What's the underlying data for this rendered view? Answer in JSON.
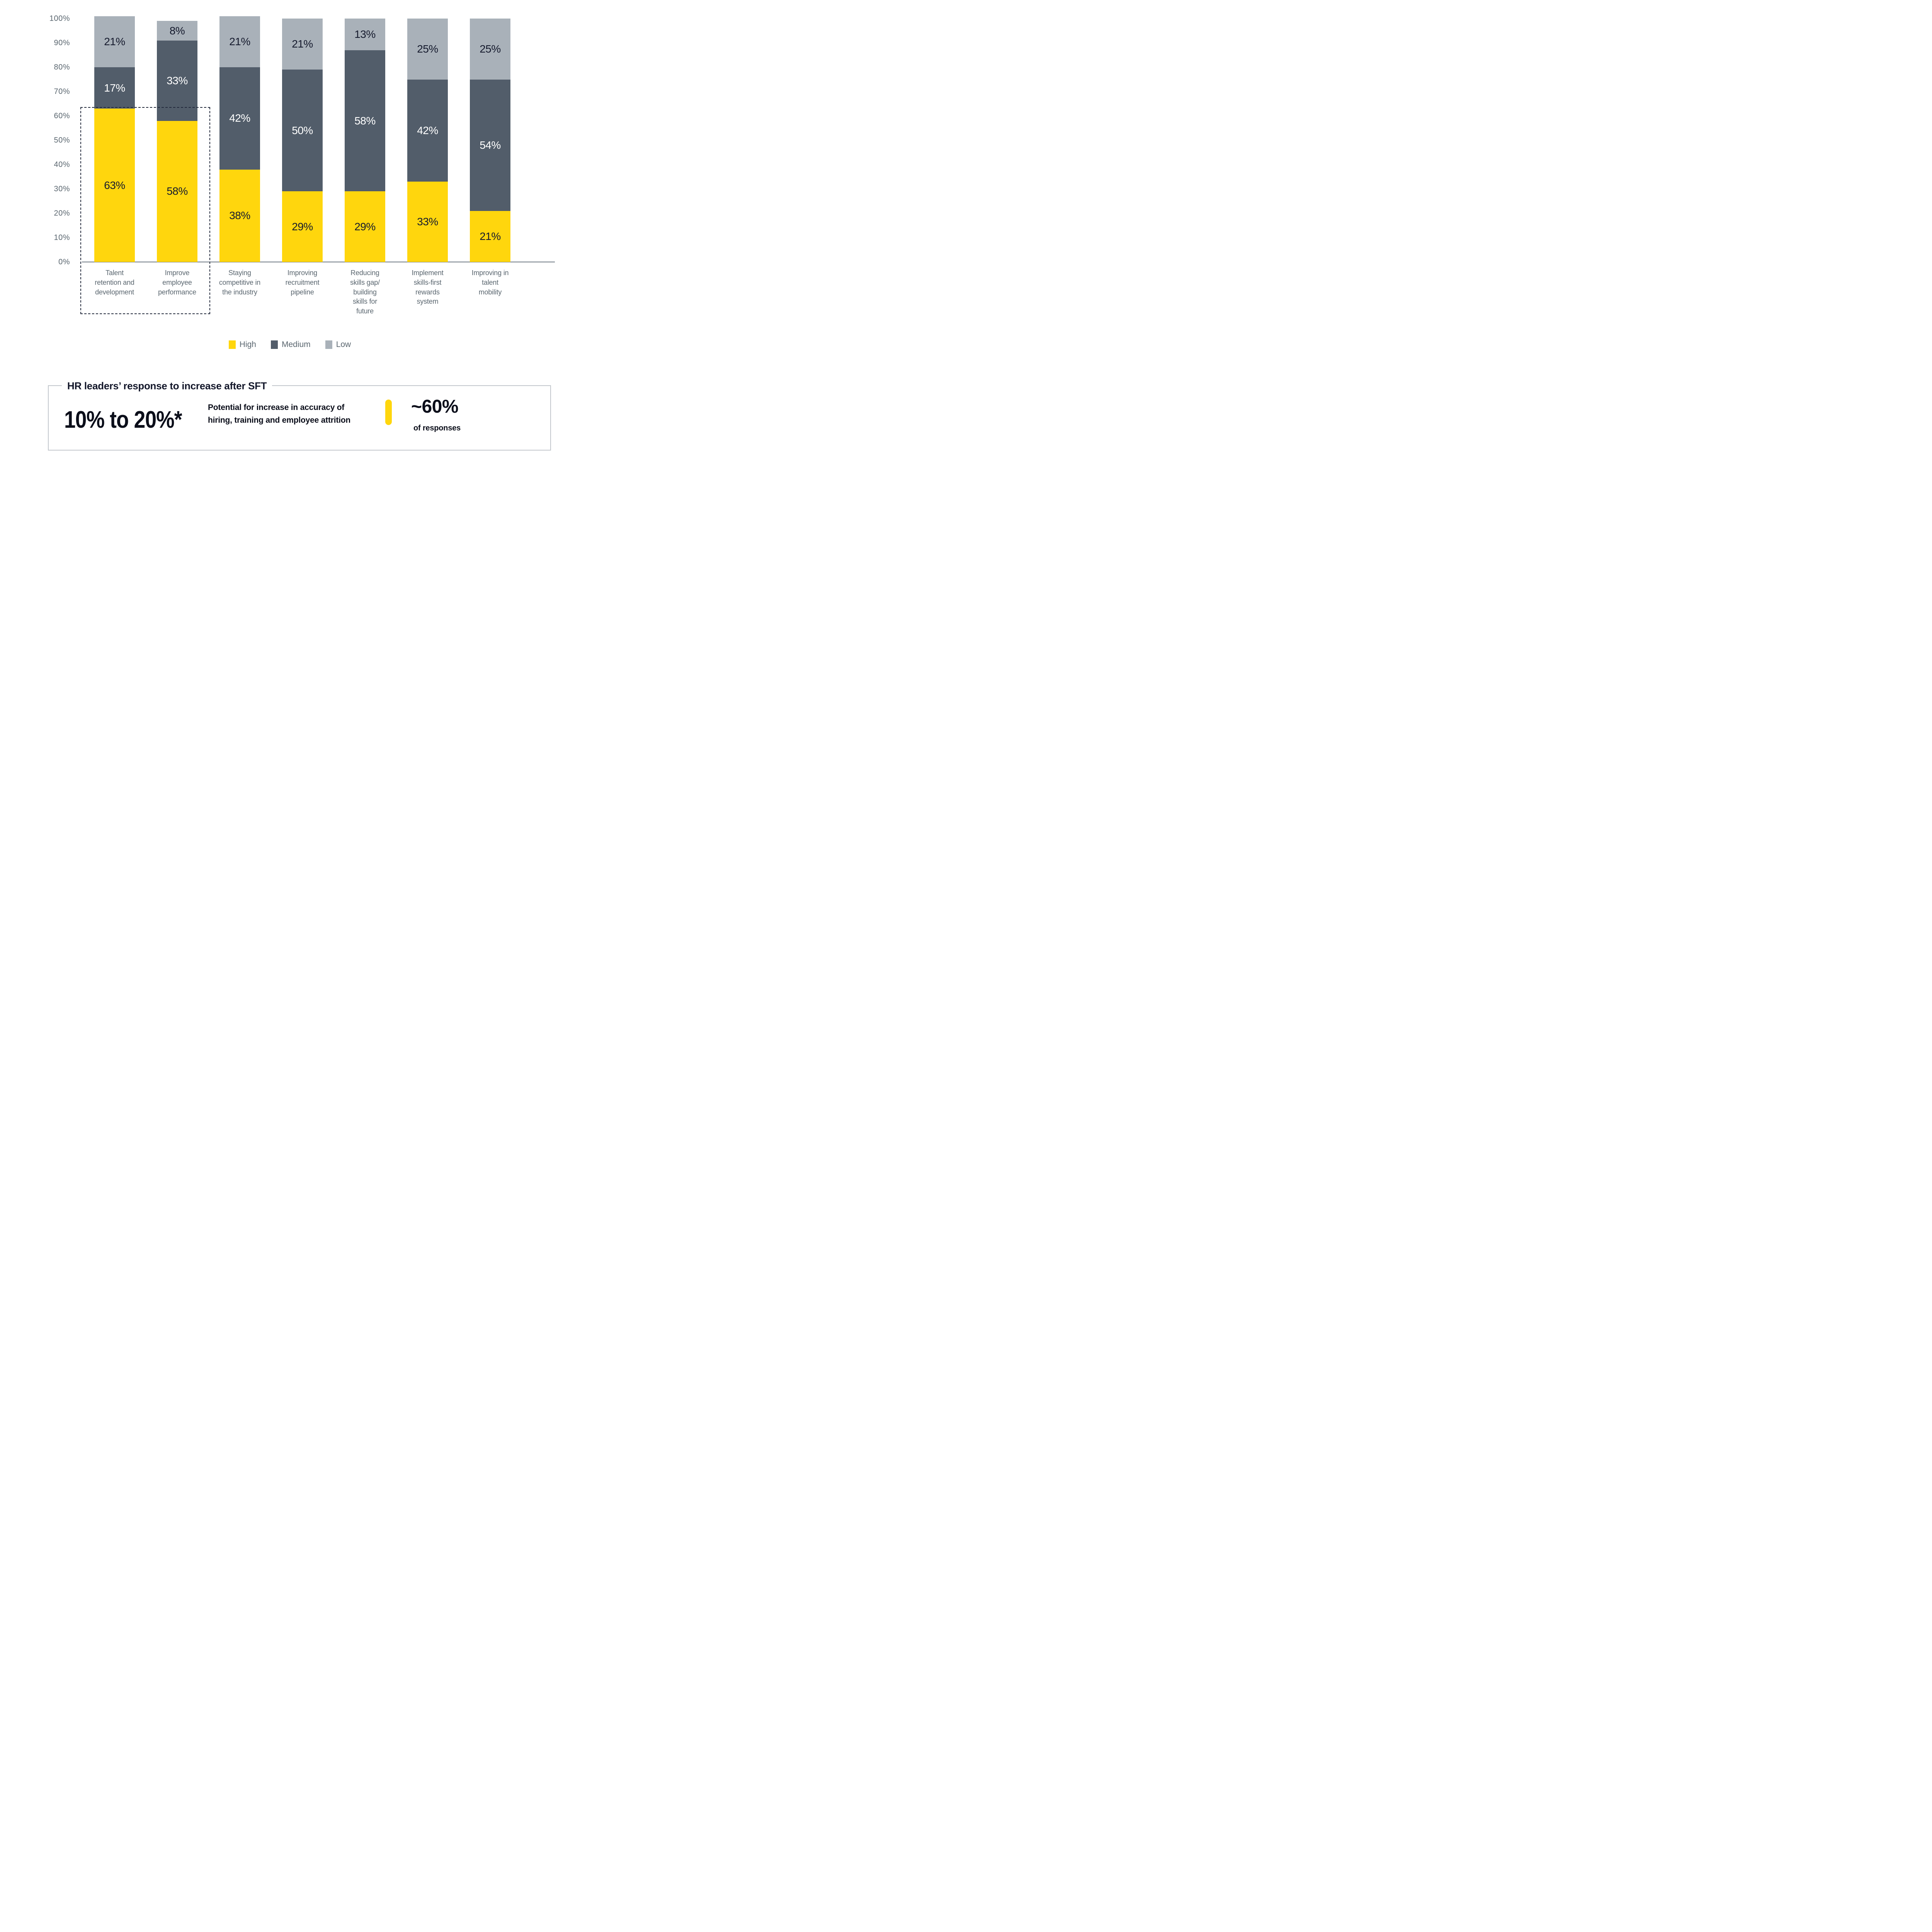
{
  "chart_data": {
    "type": "bar",
    "stacked": true,
    "title": "",
    "xlabel": "",
    "ylabel": "",
    "ylim": [
      0,
      100
    ],
    "grid": false,
    "legend_position": "bottom",
    "y_ticks": [
      "0%",
      "10%",
      "20%",
      "30%",
      "40%",
      "50%",
      "60%",
      "70%",
      "80%",
      "90%",
      "100%"
    ],
    "categories": [
      "Talent\nretention and\ndevelopment",
      "Improve\nemployee\nperformance",
      "Staying\ncompetitive in\nthe industry",
      "Improving\nrecruitment\npipeline",
      "Reducing\nskills gap/\nbuilding\nskills for\nfuture",
      "Implement\nskills-first\nrewards\nsystem",
      "Improving in\ntalent\nmobility"
    ],
    "series": [
      {
        "name": "High",
        "color": "#FFD60D",
        "label_color": "#161B2E",
        "values": [
          63,
          58,
          38,
          29,
          29,
          33,
          21
        ]
      },
      {
        "name": "Medium",
        "color": "#525D6A",
        "label_color": "#FFFFFF",
        "values": [
          17,
          33,
          42,
          50,
          58,
          42,
          54
        ]
      },
      {
        "name": "Low",
        "color": "#A9B1B9",
        "label_color": "#161B2E",
        "values": [
          21,
          8,
          21,
          21,
          13,
          25,
          25
        ]
      }
    ],
    "data_label_suffix": "%",
    "annotations": {
      "highlight_box": "dashed rectangle around first two categories (Talent retention and development, Improve employee performance)"
    }
  },
  "legend": {
    "items": [
      {
        "label": "High",
        "color": "#FFD60D"
      },
      {
        "label": "Medium",
        "color": "#525D6A"
      },
      {
        "label": "Low",
        "color": "#A9B1B9"
      }
    ]
  },
  "callout": {
    "title": "HR leaders’ response to increase after SFT",
    "big_number": "10% to 20%*",
    "description": "Potential for increase in accuracy of\nhiring, training and employee attrition",
    "stat_value": "~60%",
    "stat_caption": "of responses"
  },
  "colors": {
    "high": "#FFD60D",
    "medium": "#525D6A",
    "low": "#A9B1B9",
    "label_dark": "#161B2E",
    "label_light": "#FFFFFF",
    "axis_text": "#5B6770",
    "axis_line": "#6E7983",
    "callout_border": "#C2C7CC",
    "dashed_box": "#232A3C",
    "background": "#FFFFFF"
  }
}
